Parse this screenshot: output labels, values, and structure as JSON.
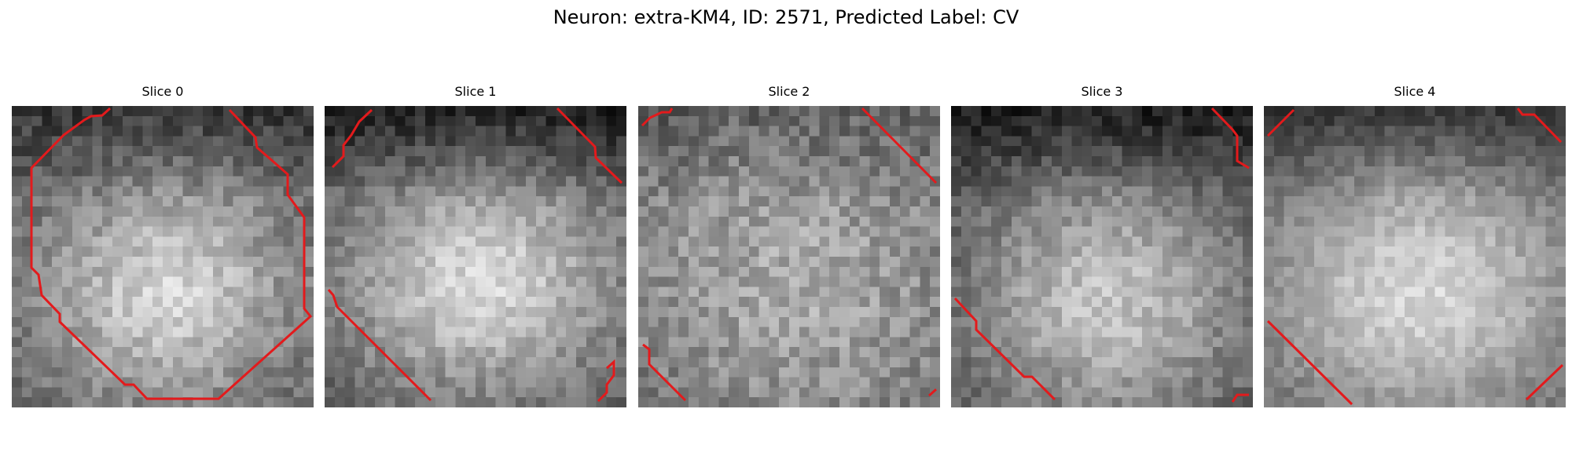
{
  "figure": {
    "title": "Neuron: extra-KM4, ID: 2571, Predicted Label: CV"
  },
  "slices": [
    {
      "title": "Slice 0"
    },
    {
      "title": "Slice 1"
    },
    {
      "title": "Slice 2"
    },
    {
      "title": "Slice 3"
    },
    {
      "title": "Slice 4"
    }
  ],
  "contour_color": "#e31a1c"
}
